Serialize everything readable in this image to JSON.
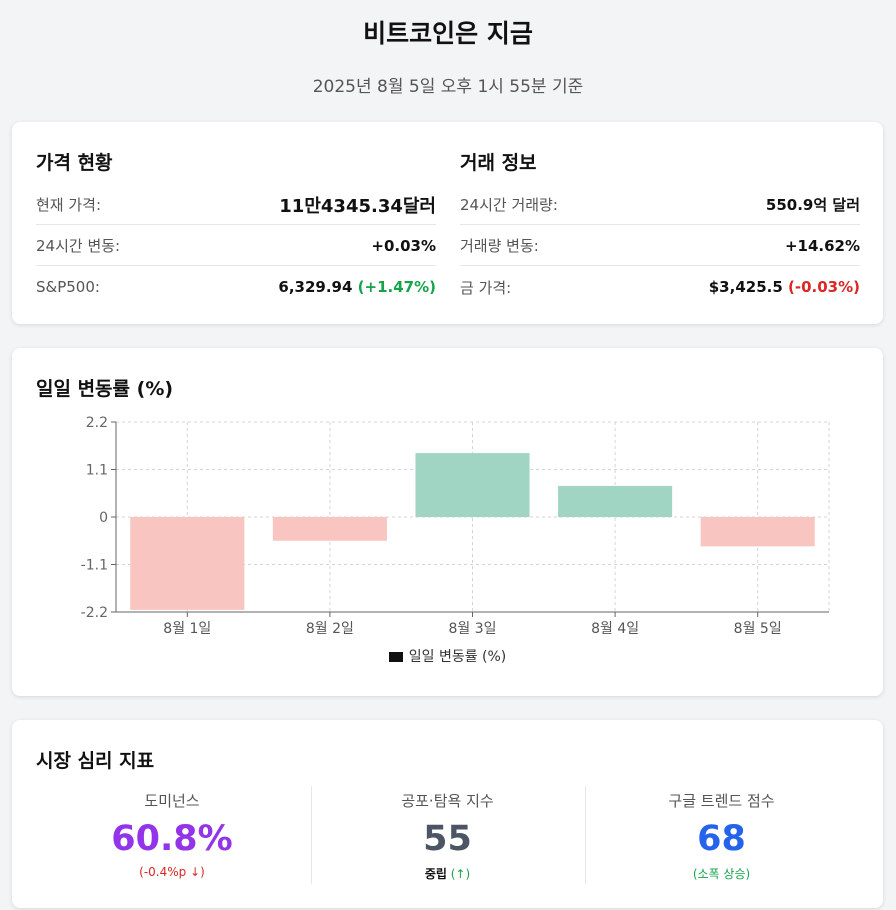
{
  "header": {
    "title": "비트코인은 지금",
    "timestamp": "2025년 8월 5일 오후 1시 55분 기준"
  },
  "price_status": {
    "title": "가격 현황",
    "rows": [
      {
        "label": "현재 가격:",
        "value": "11만4345.34달러"
      },
      {
        "label": "24시간 변동:",
        "value": "+0.03%"
      },
      {
        "label": "S&P500:",
        "value": "6,329.94",
        "change": "(+1.47%)"
      }
    ]
  },
  "trade_info": {
    "title": "거래 정보",
    "rows": [
      {
        "label": "24시간 거래량:",
        "value": "550.9억 달러"
      },
      {
        "label": "거래량 변동:",
        "value": "+14.62%"
      },
      {
        "label": "금 가격:",
        "value": "$3,425.5",
        "change": "(-0.03%)"
      }
    ]
  },
  "chart_section": {
    "title": "일일 변동률 (%)"
  },
  "chart_data": {
    "type": "bar",
    "categories": [
      "8월 1일",
      "8월 2일",
      "8월 3일",
      "8월 4일",
      "8월 5일"
    ],
    "values": [
      -2.15,
      -0.55,
      1.48,
      0.72,
      -0.68
    ],
    "yticks": [
      "2.2",
      "1.1",
      "0",
      "-1.1",
      "-2.2"
    ],
    "ylim": [
      -2.2,
      2.2
    ],
    "legend": "일일 변동률 (%)",
    "grid": true,
    "positive_color": "#a0d5c4",
    "negative_color": "#f8c5c1"
  },
  "sentiment": {
    "title": "시장 심리 지표",
    "metrics": [
      {
        "label": "도미넌스",
        "value": "60.8%",
        "sub": "(-0.4%p ↓)"
      },
      {
        "label": "공포·탐욕 지수",
        "value": "55",
        "status": "중립",
        "sub": "(↑)"
      },
      {
        "label": "구글 트렌드 점수",
        "value": "68",
        "sub": "(소폭 상승)"
      }
    ]
  }
}
